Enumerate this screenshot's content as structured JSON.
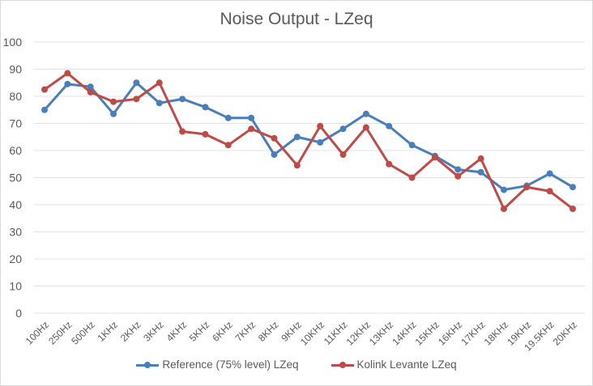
{
  "chart_data": {
    "type": "line",
    "title": "Noise Output  - LZeq",
    "xlabel": "",
    "ylabel": "",
    "ylim": [
      0,
      100
    ],
    "yticks": [
      0,
      10,
      20,
      30,
      40,
      50,
      60,
      70,
      80,
      90,
      100
    ],
    "grid": true,
    "legend_position": "bottom",
    "categories": [
      "100Hz",
      "250Hz",
      "500Hz",
      "1KHz",
      "2KHz",
      "3KHz",
      "4KHz",
      "5KHz",
      "6KHz",
      "7KHz",
      "8KHz",
      "9KHz",
      "10KHz",
      "11KHz",
      "12KHz",
      "13KHz",
      "14KHz",
      "15KHz",
      "16KHz",
      "17KHz",
      "18KHz",
      "19KHz",
      "19.5KHz",
      "20KHz"
    ],
    "series": [
      {
        "name": "Reference (75% level) LZeq",
        "color": "#4a7ebb",
        "values": [
          75,
          84.5,
          83.5,
          73.5,
          85,
          77.5,
          79,
          76,
          72,
          72,
          58.5,
          65,
          63,
          68,
          73.5,
          69,
          62,
          58,
          53,
          52,
          45.5,
          47,
          51.5,
          46.5
        ]
      },
      {
        "name": "Kolink Levante LZeq",
        "color": "#be4b48",
        "values": [
          82.5,
          88.5,
          81.5,
          78,
          79,
          85,
          67,
          66,
          62,
          68,
          64.5,
          54.5,
          69,
          58.5,
          68.5,
          55,
          50,
          57.5,
          50.5,
          57,
          38.5,
          46.5,
          45,
          38.5
        ]
      }
    ]
  }
}
